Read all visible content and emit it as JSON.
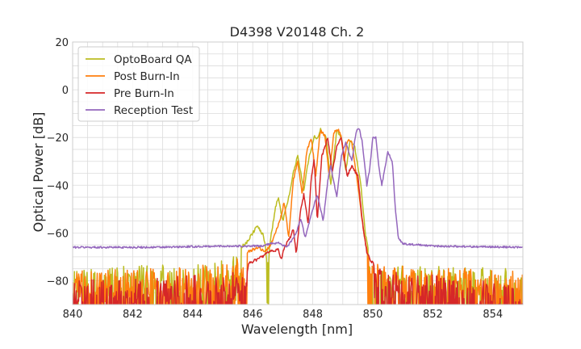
{
  "chart_data": {
    "type": "line",
    "title": "D4398 V20148 Ch. 2",
    "xlabel": "Wavelength [nm]",
    "ylabel": "Optical Power [dB]",
    "xlim": [
      840,
      855
    ],
    "ylim": [
      -90,
      20
    ],
    "xticks": [
      840,
      842,
      844,
      846,
      848,
      850,
      852,
      854
    ],
    "xtick_labels": [
      "840",
      "842",
      "844",
      "846",
      "848",
      "850",
      "852",
      "854"
    ],
    "yticks": [
      20,
      0,
      -20,
      -40,
      -60,
      -80
    ],
    "ytick_labels": [
      "20",
      "0",
      "−20",
      "−40",
      "−60",
      "−80"
    ],
    "grid": true,
    "legend_position": "top-left",
    "series": [
      {
        "name": "OptoBoard QA",
        "color": "#bcbd22",
        "noise_floor": -74,
        "points": [
          [
            840,
            -74
          ],
          [
            844.4,
            -73
          ],
          [
            845.2,
            -70
          ],
          [
            845.8,
            -64
          ],
          [
            846.0,
            -60
          ],
          [
            846.15,
            -57
          ],
          [
            846.35,
            -61
          ],
          [
            846.5,
            -70
          ],
          [
            846.6,
            -62
          ],
          [
            846.75,
            -50
          ],
          [
            846.85,
            -45
          ],
          [
            847.0,
            -55
          ],
          [
            847.2,
            -45
          ],
          [
            847.35,
            -35
          ],
          [
            847.5,
            -27.5
          ],
          [
            847.7,
            -42
          ],
          [
            847.85,
            -30
          ],
          [
            848.05,
            -19.5
          ],
          [
            848.15,
            -21
          ],
          [
            848.25,
            -16.5
          ],
          [
            848.45,
            -20
          ],
          [
            848.6,
            -40
          ],
          [
            848.8,
            -17
          ],
          [
            848.95,
            -20
          ],
          [
            849.1,
            -34
          ],
          [
            849.25,
            -21
          ],
          [
            849.4,
            -24
          ],
          [
            849.6,
            -40
          ],
          [
            849.75,
            -60
          ],
          [
            849.9,
            -70
          ],
          [
            850.1,
            -73
          ],
          [
            855,
            -75
          ]
        ]
      },
      {
        "name": "Post Burn-In",
        "color": "#ff7f0e",
        "noise_floor": -76,
        "points": [
          [
            840,
            -76
          ],
          [
            845.2,
            -73
          ],
          [
            845.8,
            -68
          ],
          [
            846.2,
            -66
          ],
          [
            846.4,
            -68
          ],
          [
            846.6,
            -65
          ],
          [
            846.9,
            -55
          ],
          [
            847.05,
            -47
          ],
          [
            847.2,
            -62
          ],
          [
            847.35,
            -38
          ],
          [
            847.5,
            -30
          ],
          [
            847.65,
            -44
          ],
          [
            847.8,
            -26
          ],
          [
            847.95,
            -20
          ],
          [
            848.1,
            -36
          ],
          [
            848.25,
            -17
          ],
          [
            848.4,
            -19
          ],
          [
            848.55,
            -36
          ],
          [
            848.7,
            -18
          ],
          [
            848.85,
            -16.5
          ],
          [
            848.95,
            -20
          ],
          [
            849.05,
            -30
          ],
          [
            849.15,
            -21
          ],
          [
            849.3,
            -22
          ],
          [
            849.5,
            -40
          ],
          [
            849.7,
            -60
          ],
          [
            849.85,
            -70
          ],
          [
            850.0,
            -73
          ],
          [
            855,
            -76
          ]
        ]
      },
      {
        "name": "Pre Burn-In",
        "color": "#d62728",
        "noise_floor": -81,
        "points": [
          [
            840,
            -80
          ],
          [
            845.2,
            -77
          ],
          [
            846.0,
            -72
          ],
          [
            846.3,
            -70
          ],
          [
            846.55,
            -68
          ],
          [
            846.85,
            -67
          ],
          [
            846.95,
            -71
          ],
          [
            847.05,
            -66
          ],
          [
            847.25,
            -62
          ],
          [
            847.35,
            -58
          ],
          [
            847.45,
            -69
          ],
          [
            847.6,
            -50
          ],
          [
            847.7,
            -44
          ],
          [
            847.85,
            -56
          ],
          [
            847.95,
            -37
          ],
          [
            848.05,
            -29
          ],
          [
            848.15,
            -55
          ],
          [
            848.3,
            -28
          ],
          [
            848.5,
            -20
          ],
          [
            848.65,
            -35
          ],
          [
            848.8,
            -24
          ],
          [
            848.95,
            -20
          ],
          [
            849.15,
            -36
          ],
          [
            849.3,
            -32
          ],
          [
            849.5,
            -36
          ],
          [
            849.65,
            -55
          ],
          [
            849.8,
            -68
          ],
          [
            849.95,
            -72
          ],
          [
            850.2,
            -75
          ],
          [
            855,
            -82
          ]
        ]
      },
      {
        "name": "Reception Test",
        "color": "#9467bd",
        "noise_floor": null,
        "points": [
          [
            840,
            -66
          ],
          [
            843,
            -66
          ],
          [
            845,
            -65.5
          ],
          [
            846.3,
            -65.5
          ],
          [
            846.6,
            -64.5
          ],
          [
            846.85,
            -64
          ],
          [
            847.15,
            -66
          ],
          [
            847.45,
            -60
          ],
          [
            847.6,
            -54
          ],
          [
            847.75,
            -62
          ],
          [
            848.0,
            -50
          ],
          [
            848.15,
            -44
          ],
          [
            848.35,
            -55
          ],
          [
            848.5,
            -38
          ],
          [
            848.6,
            -32
          ],
          [
            848.8,
            -45
          ],
          [
            848.95,
            -28
          ],
          [
            849.1,
            -22
          ],
          [
            849.3,
            -30
          ],
          [
            849.45,
            -17
          ],
          [
            849.55,
            -16.5
          ],
          [
            849.65,
            -22
          ],
          [
            849.8,
            -40
          ],
          [
            849.9,
            -33
          ],
          [
            850.0,
            -20
          ],
          [
            850.1,
            -20
          ],
          [
            850.2,
            -32
          ],
          [
            850.3,
            -40
          ],
          [
            850.5,
            -26
          ],
          [
            850.65,
            -30
          ],
          [
            850.75,
            -50
          ],
          [
            850.85,
            -62
          ],
          [
            851.0,
            -64.5
          ],
          [
            852,
            -65.5
          ],
          [
            855,
            -66
          ]
        ]
      }
    ]
  }
}
